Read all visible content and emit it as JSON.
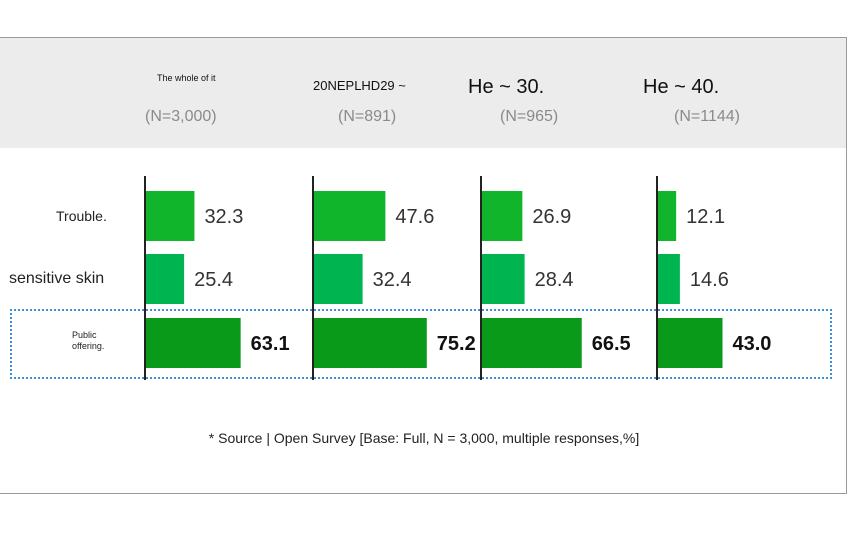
{
  "colors": {
    "header_bg": "#ececec",
    "axis": "#222222",
    "bar_trouble": "#11b52b",
    "bar_sensitive": "#00b44f",
    "bar_public": "#0a9a1a",
    "highlight_border": "#3a8fd6"
  },
  "chart_data": {
    "type": "bar",
    "orientation": "horizontal",
    "groups": [
      {
        "title": "The whole of it",
        "n_label": "(N=3,000)"
      },
      {
        "title": "20NEPLHD29 ~",
        "n_label": "(N=891)"
      },
      {
        "title": "He ~ 30.",
        "n_label": "(N=965)"
      },
      {
        "title": "He ~ 40.",
        "n_label": "(N=1144)"
      }
    ],
    "categories": [
      "Trouble.",
      "sensitive skin",
      "Public offering."
    ],
    "series": [
      {
        "group": "The whole of it",
        "values": [
          32.3,
          25.4,
          63.1
        ],
        "labels": [
          "32.3",
          "25.4",
          "63.1"
        ]
      },
      {
        "group": "20NEPLHD29 ~",
        "values": [
          47.6,
          32.4,
          75.2
        ],
        "labels": [
          "47.6",
          "32.4",
          "75.2"
        ]
      },
      {
        "group": "He ~ 30.",
        "values": [
          26.9,
          28.4,
          66.5
        ],
        "labels": [
          "26.9",
          "28.4",
          "66.5"
        ]
      },
      {
        "group": "He ~ 40.",
        "values": [
          12.1,
          14.6,
          43.0
        ],
        "labels": [
          "12.1",
          "14.6",
          "43.0"
        ]
      }
    ],
    "highlighted_category": "Public offering.",
    "xlim": [
      0,
      100
    ],
    "grid": false,
    "source": "* Source | Open Survey [Base: Full, N = 3,000, multiple responses,%]"
  }
}
